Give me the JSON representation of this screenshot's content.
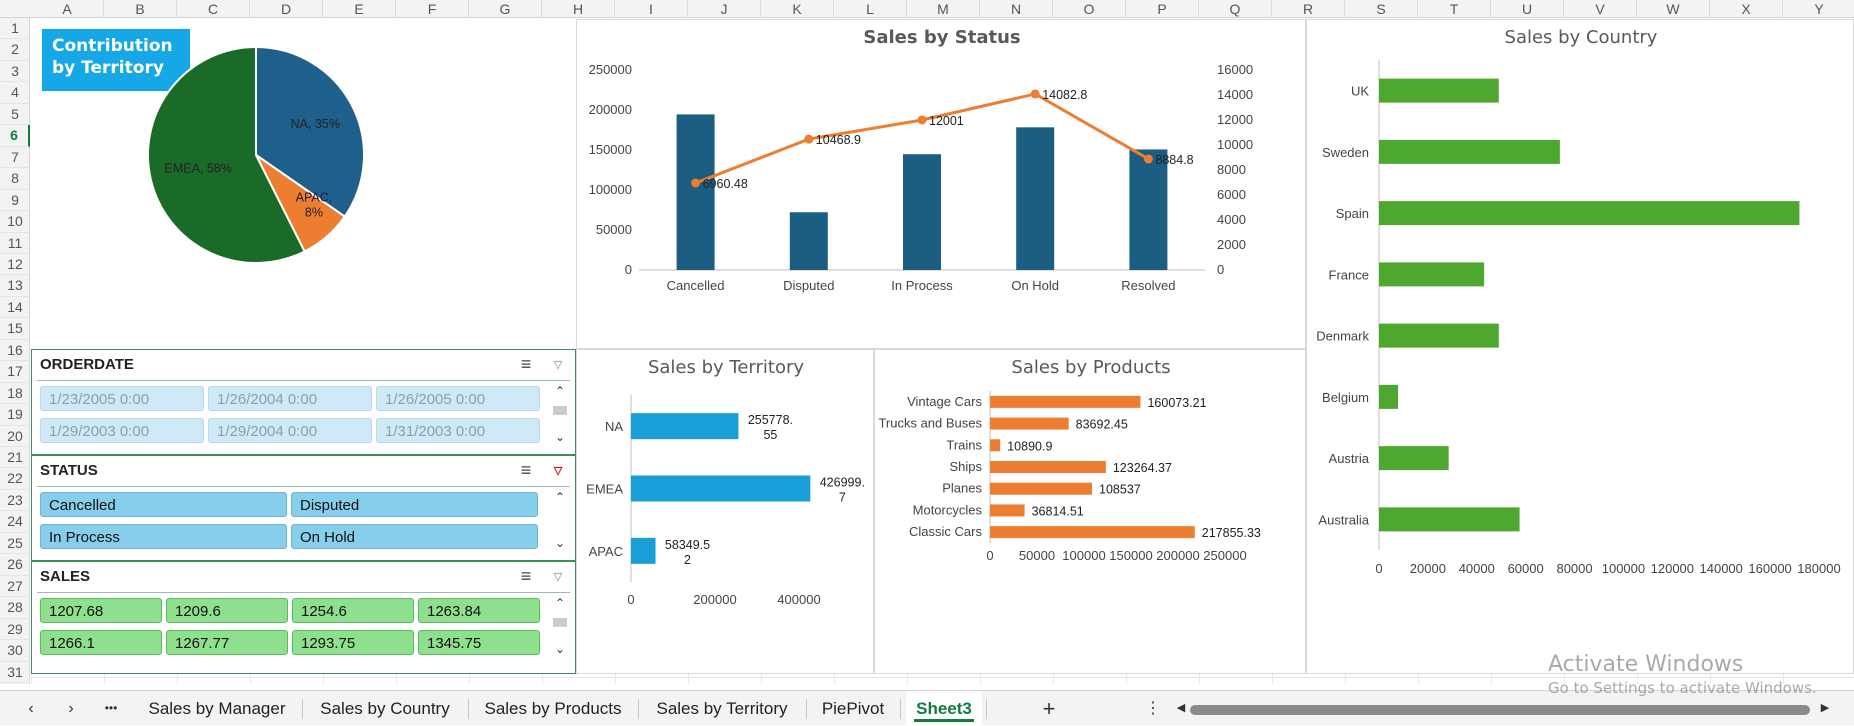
{
  "columns": [
    "A",
    "B",
    "C",
    "D",
    "E",
    "F",
    "G",
    "H",
    "I",
    "J",
    "K",
    "L",
    "M",
    "N",
    "O",
    "P",
    "Q",
    "R",
    "S",
    "T",
    "U",
    "V",
    "W",
    "X",
    "Y"
  ],
  "rows": [
    "1",
    "2",
    "3",
    "4",
    "5",
    "6",
    "7",
    "8",
    "9",
    "10",
    "11",
    "12",
    "13",
    "14",
    "15",
    "16",
    "17",
    "18",
    "19",
    "20",
    "21",
    "22",
    "23",
    "24",
    "25",
    "26",
    "27",
    "28",
    "29",
    "30",
    "31"
  ],
  "selected_row": "6",
  "contribution_label": "Contribution by Territory",
  "slicers": {
    "orderdate": {
      "title": "ORDERDATE",
      "items": [
        "1/23/2005 0:00",
        "1/26/2004 0:00",
        "1/26/2005 0:00",
        "1/29/2003 0:00",
        "1/29/2004 0:00",
        "1/31/2003 0:00"
      ]
    },
    "status": {
      "title": "STATUS",
      "items": [
        "Cancelled",
        "Disputed",
        "In Process",
        "On Hold"
      ]
    },
    "sales": {
      "title": "SALES",
      "items": [
        "1207.68",
        "1209.6",
        "1254.6",
        "1263.84",
        "1266.1",
        "1267.77",
        "1293.75",
        "1345.75"
      ]
    },
    "multiselect_icon": "multi-select-icon",
    "clear_filter_icon": "clear-filter-icon"
  },
  "sheet_tabs": [
    "Sales by Manager",
    "Sales by Country",
    "Sales by Products",
    "Sales by Territory",
    "PiePivot",
    "Sheet3"
  ],
  "active_tab": "Sheet3",
  "add_sheet": "+",
  "more_tabs": "•••",
  "watermark": {
    "line1": "Activate Windows",
    "line2": "Go to Settings to activate Windows."
  },
  "colors": {
    "pie_na": "#1f5f8b",
    "pie_apac": "#ed7d31",
    "pie_emea": "#1a6b28",
    "status_bar": "#1b5e82",
    "status_line": "#ed7d31",
    "territory_bar": "#1a9ed8",
    "products_bar": "#ed7d31",
    "country_bar": "#4ea72e"
  },
  "chart_data": [
    {
      "type": "pie",
      "title": "",
      "labels": [
        "NA",
        "APAC",
        "EMEA"
      ],
      "values": [
        35,
        8,
        58
      ],
      "data_labels": [
        "NA, 35%",
        "APAC, 8%",
        "EMEA, 58%"
      ]
    },
    {
      "type": "bar",
      "title": "Sales by Status",
      "categories": [
        "Cancelled",
        "Disputed",
        "In Process",
        "On Hold",
        "Resolved"
      ],
      "series": [
        {
          "values": [
            194487,
            72212,
            144730,
            178362,
            150718
          ],
          "axis": "left"
        },
        {
          "values": [
            6960.48,
            10468.9,
            12001,
            14082.8,
            8884.8
          ],
          "axis": "right",
          "render": "line"
        }
      ],
      "data_labels": [
        "6960.48",
        "10468.9",
        "12001",
        "14082.8",
        "8884.8"
      ],
      "y_ticks_left": [
        "0",
        "50000",
        "100000",
        "150000",
        "200000",
        "250000"
      ],
      "y_ticks_right": [
        "0",
        "2000",
        "4000",
        "6000",
        "8000",
        "10000",
        "12000",
        "14000",
        "16000"
      ],
      "ylim_left": [
        0,
        250000
      ],
      "ylim_right": [
        0,
        16000
      ]
    },
    {
      "type": "bar",
      "orientation": "horizontal",
      "title": "Sales by Territory",
      "categories": [
        "NA",
        "EMEA",
        "APAC"
      ],
      "values": [
        255778.55,
        426999.7,
        58349.52
      ],
      "data_labels": [
        [
          "255778.",
          "55"
        ],
        [
          "426999.",
          "7"
        ],
        [
          "58349.5",
          "2"
        ]
      ],
      "x_ticks": [
        "0",
        "200000",
        "400000"
      ],
      "xlim": [
        0,
        500000
      ]
    },
    {
      "type": "bar",
      "orientation": "horizontal",
      "title": "Sales by Products",
      "categories": [
        "Vintage Cars",
        "Trucks and Buses",
        "Trains",
        "Ships",
        "Planes",
        "Motorcycles",
        "Classic Cars"
      ],
      "values": [
        160073.21,
        83692.45,
        10890.9,
        123264.37,
        108537,
        36814.51,
        217855.33
      ],
      "data_labels": [
        "160073.21",
        "83692.45",
        "10890.9",
        "123264.37",
        "108537",
        "36814.51",
        "217855.33"
      ],
      "x_ticks": [
        "0",
        "50000",
        "100000",
        "150000",
        "200000",
        "250000"
      ],
      "xlim": [
        0,
        250000
      ]
    },
    {
      "type": "bar",
      "orientation": "horizontal",
      "title": "Sales by Country",
      "categories": [
        "UK",
        "Sweden",
        "Spain",
        "France",
        "Denmark",
        "Belgium",
        "Austria",
        "Australia"
      ],
      "values": [
        49000,
        74000,
        172000,
        43000,
        49000,
        7800,
        28500,
        57500
      ],
      "x_ticks": [
        "0",
        "20000",
        "40000",
        "60000",
        "80000",
        "100000",
        "120000",
        "140000",
        "160000",
        "180000"
      ],
      "xlim": [
        0,
        180000
      ]
    }
  ]
}
